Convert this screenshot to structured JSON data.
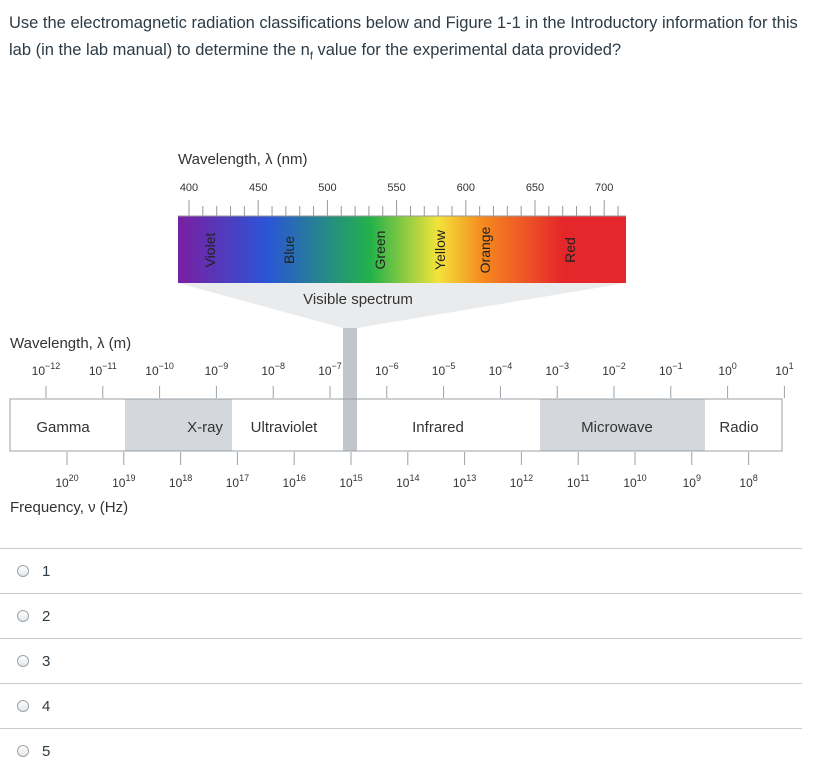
{
  "question": {
    "text_before": "Use the electromagnetic radiation classifications below and Figure 1-1 in the Introductory information for this lab (in the lab manual) to determine the n",
    "subscript": "f",
    "text_after": " value for the experimental data provided?"
  },
  "figure": {
    "visible": {
      "axis_label": "Wavelength, λ (nm)",
      "ticks": [
        "400",
        "450",
        "500",
        "550",
        "600",
        "650",
        "700"
      ],
      "colors": [
        {
          "label": "Violet",
          "hex": "#7a1fa2"
        },
        {
          "label": "Blue",
          "hex": "#2a55d6"
        },
        {
          "label": "Green",
          "hex": "#23b24a"
        },
        {
          "label": "Yellow",
          "hex": "#f3e33a"
        },
        {
          "label": "Orange",
          "hex": "#f58a1f"
        },
        {
          "label": "Red",
          "hex": "#e5262a"
        }
      ],
      "caption": "Visible spectrum"
    },
    "wavelength_axis_label": "Wavelength, λ (m)",
    "wavelength_exponents": [
      "−12",
      "−11",
      "−10",
      "−9",
      "−8",
      "−7",
      "−6",
      "−5",
      "−4",
      "−3",
      "−2",
      "−1",
      "0",
      "1"
    ],
    "frequency_axis_label": "Frequency, ν (Hz)",
    "frequency_exponents": [
      "20",
      "19",
      "18",
      "17",
      "16",
      "15",
      "14",
      "13",
      "12",
      "11",
      "10",
      "9",
      "8"
    ],
    "base": "10",
    "regions": [
      {
        "label": "Gamma",
        "shade": "#ffffff"
      },
      {
        "label": "X-ray",
        "shade": "#d4d7db"
      },
      {
        "label": "Ultraviolet",
        "shade": "#ffffff"
      },
      {
        "label": "Infrared",
        "shade": "#ffffff"
      },
      {
        "label": "Microwave",
        "shade": "#d4d7db"
      },
      {
        "label": "Radio",
        "shade": "#ffffff"
      }
    ],
    "colors": {
      "text": "#333333",
      "border": "#9aa0a6",
      "visible_band": "#c2c6ca",
      "fan": "#e9ebed"
    }
  },
  "answers": [
    {
      "label": "1"
    },
    {
      "label": "2"
    },
    {
      "label": "3"
    },
    {
      "label": "4"
    },
    {
      "label": "5"
    }
  ]
}
